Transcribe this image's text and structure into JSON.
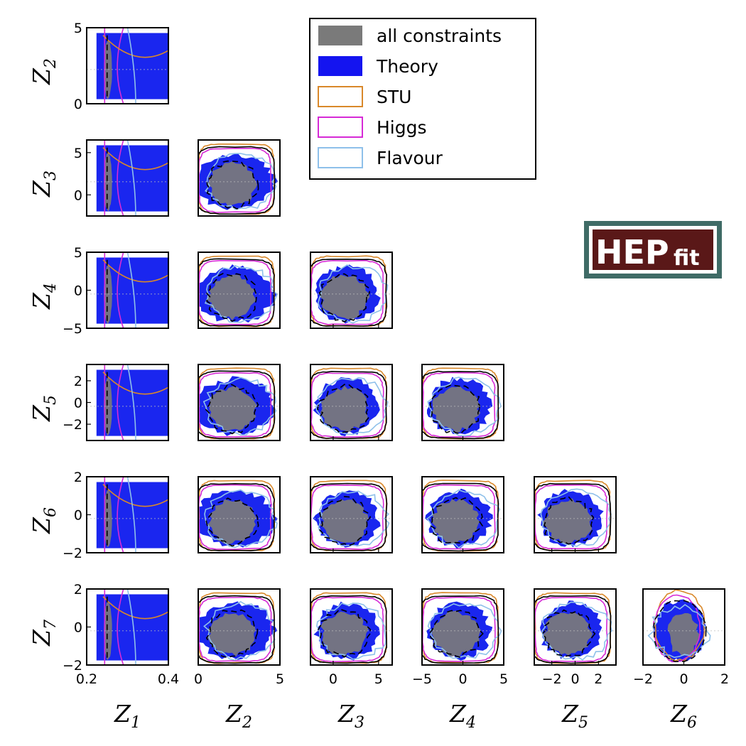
{
  "chart_data": {
    "type": "corner",
    "variables": [
      "Z1",
      "Z2",
      "Z3",
      "Z4",
      "Z5",
      "Z6",
      "Z7"
    ],
    "axes": {
      "Z1": {
        "lim": [
          0.2,
          0.4
        ],
        "ticks": [
          0.2,
          0.4
        ],
        "tick_labels": [
          "0.2",
          "0.4"
        ]
      },
      "Z2": {
        "lim": [
          0,
          5
        ],
        "ticks": [
          0,
          5
        ],
        "tick_labels": [
          "0",
          "5"
        ]
      },
      "Z3": {
        "lim": [
          -2.5,
          6.5
        ],
        "ticks": [
          0,
          5
        ],
        "tick_labels": [
          "0",
          "5"
        ]
      },
      "Z4": {
        "lim": [
          -5,
          5
        ],
        "ticks": [
          -5,
          0,
          5
        ],
        "tick_labels": [
          "−5",
          "0",
          "5"
        ]
      },
      "Z5": {
        "lim": [
          -3.5,
          3.5
        ],
        "ticks": [
          -2,
          0,
          2
        ],
        "tick_labels": [
          "−2",
          "0",
          "2"
        ]
      },
      "Z6": {
        "lim": [
          -2,
          2
        ],
        "ticks": [
          -2,
          0,
          2
        ],
        "tick_labels": [
          "−2",
          "0",
          "2"
        ]
      },
      "Z7": {
        "lim": [
          -2,
          2
        ],
        "ticks": [
          -2,
          0,
          2
        ],
        "tick_labels": [
          "−2",
          "0",
          "2"
        ]
      }
    },
    "legend": {
      "placement": "top-center",
      "entries": [
        {
          "label": "all constraints",
          "style": "filled",
          "color": "#7a7a7a"
        },
        {
          "label": "Theory",
          "style": "filled",
          "color": "#1414f0"
        },
        {
          "label": "STU",
          "style": "outline",
          "color": "#d9882a"
        },
        {
          "label": "Higgs",
          "style": "outline",
          "color": "#d62ad6"
        },
        {
          "label": "Flavour",
          "style": "outline",
          "color": "#8ec0ea"
        }
      ]
    },
    "grid": false
  },
  "logo": {
    "big": "HEP",
    "small": "fit"
  },
  "colors": {
    "all_constraints": "#737383",
    "theory": "#1a26ef",
    "stu": "#d9882a",
    "higgs": "#d62ad6",
    "flavour": "#8ec0ea",
    "logo_bg": "#5a1818",
    "logo_frame": "#3f6b66"
  }
}
